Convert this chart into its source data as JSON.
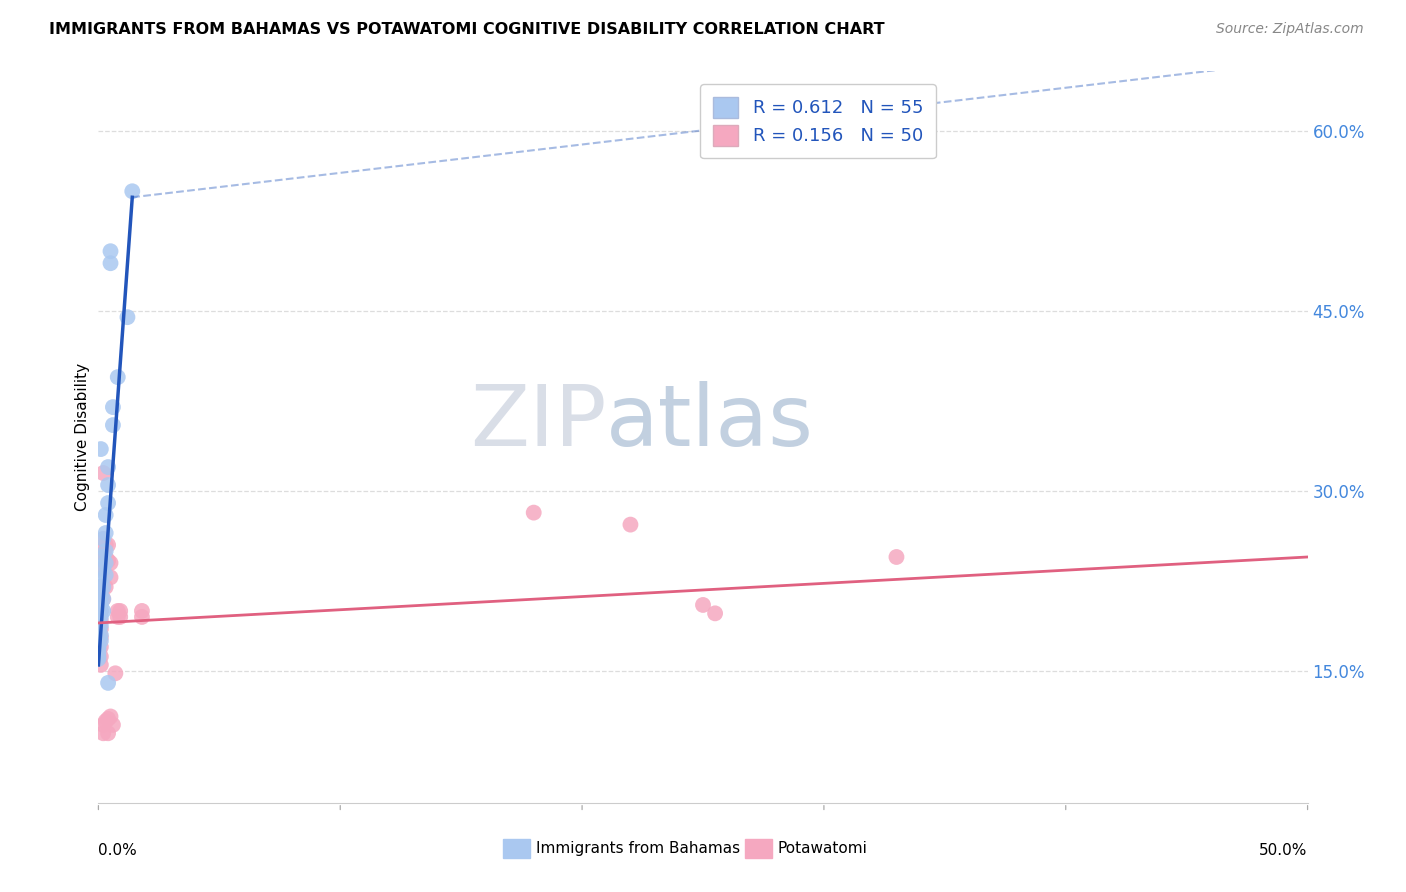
{
  "title": "IMMIGRANTS FROM BAHAMAS VS POTAWATOMI COGNITIVE DISABILITY CORRELATION CHART",
  "source": "Source: ZipAtlas.com",
  "ylabel": "Cognitive Disability",
  "right_yticks": [
    "15.0%",
    "30.0%",
    "45.0%",
    "60.0%"
  ],
  "right_ytick_vals": [
    0.15,
    0.3,
    0.45,
    0.6
  ],
  "xlim": [
    0.0,
    0.5
  ],
  "ylim": [
    0.04,
    0.65
  ],
  "R_blue": 0.612,
  "N_blue": 55,
  "R_pink": 0.156,
  "N_pink": 50,
  "color_blue": "#aac8f0",
  "color_pink": "#f5a8c0",
  "line_blue": "#2255bb",
  "line_pink": "#e06080",
  "legend_label_blue": "Immigrants from Bahamas",
  "legend_label_pink": "Potawatomi",
  "blue_scatter": [
    [
      0.0,
      0.22
    ],
    [
      0.0,
      0.215
    ],
    [
      0.0,
      0.21
    ],
    [
      0.0,
      0.208
    ],
    [
      0.0,
      0.205
    ],
    [
      0.0,
      0.202
    ],
    [
      0.0,
      0.2
    ],
    [
      0.0,
      0.198
    ],
    [
      0.0,
      0.196
    ],
    [
      0.0,
      0.193
    ],
    [
      0.0,
      0.19
    ],
    [
      0.0,
      0.188
    ],
    [
      0.0,
      0.185
    ],
    [
      0.0,
      0.182
    ],
    [
      0.0,
      0.18
    ],
    [
      0.0,
      0.178
    ],
    [
      0.0,
      0.175
    ],
    [
      0.0,
      0.172
    ],
    [
      0.0,
      0.17
    ],
    [
      0.0,
      0.168
    ],
    [
      0.0,
      0.165
    ],
    [
      0.0,
      0.162
    ],
    [
      0.0,
      0.16
    ],
    [
      0.001,
      0.225
    ],
    [
      0.001,
      0.218
    ],
    [
      0.001,
      0.212
    ],
    [
      0.001,
      0.205
    ],
    [
      0.001,
      0.2
    ],
    [
      0.001,
      0.195
    ],
    [
      0.001,
      0.188
    ],
    [
      0.001,
      0.18
    ],
    [
      0.001,
      0.175
    ],
    [
      0.002,
      0.26
    ],
    [
      0.002,
      0.245
    ],
    [
      0.002,
      0.235
    ],
    [
      0.002,
      0.22
    ],
    [
      0.002,
      0.21
    ],
    [
      0.002,
      0.2
    ],
    [
      0.003,
      0.28
    ],
    [
      0.003,
      0.265
    ],
    [
      0.003,
      0.25
    ],
    [
      0.003,
      0.24
    ],
    [
      0.003,
      0.23
    ],
    [
      0.004,
      0.32
    ],
    [
      0.004,
      0.305
    ],
    [
      0.004,
      0.29
    ],
    [
      0.004,
      0.14
    ],
    [
      0.001,
      0.335
    ],
    [
      0.006,
      0.37
    ],
    [
      0.006,
      0.355
    ],
    [
      0.008,
      0.395
    ],
    [
      0.012,
      0.445
    ],
    [
      0.005,
      0.49
    ],
    [
      0.005,
      0.5
    ],
    [
      0.014,
      0.55
    ]
  ],
  "pink_scatter": [
    [
      0.0,
      0.215
    ],
    [
      0.0,
      0.208
    ],
    [
      0.0,
      0.202
    ],
    [
      0.0,
      0.196
    ],
    [
      0.0,
      0.19
    ],
    [
      0.0,
      0.183
    ],
    [
      0.0,
      0.175
    ],
    [
      0.0,
      0.168
    ],
    [
      0.0,
      0.162
    ],
    [
      0.001,
      0.22
    ],
    [
      0.001,
      0.21
    ],
    [
      0.001,
      0.2
    ],
    [
      0.001,
      0.192
    ],
    [
      0.001,
      0.185
    ],
    [
      0.001,
      0.178
    ],
    [
      0.001,
      0.17
    ],
    [
      0.001,
      0.162
    ],
    [
      0.001,
      0.155
    ],
    [
      0.002,
      0.315
    ],
    [
      0.002,
      0.26
    ],
    [
      0.002,
      0.248
    ],
    [
      0.002,
      0.235
    ],
    [
      0.002,
      0.22
    ],
    [
      0.002,
      0.21
    ],
    [
      0.002,
      0.105
    ],
    [
      0.002,
      0.098
    ],
    [
      0.003,
      0.255
    ],
    [
      0.003,
      0.245
    ],
    [
      0.003,
      0.22
    ],
    [
      0.003,
      0.108
    ],
    [
      0.004,
      0.255
    ],
    [
      0.004,
      0.242
    ],
    [
      0.004,
      0.11
    ],
    [
      0.004,
      0.098
    ],
    [
      0.005,
      0.24
    ],
    [
      0.005,
      0.228
    ],
    [
      0.005,
      0.112
    ],
    [
      0.006,
      0.105
    ],
    [
      0.007,
      0.148
    ],
    [
      0.008,
      0.2
    ],
    [
      0.008,
      0.195
    ],
    [
      0.009,
      0.2
    ],
    [
      0.009,
      0.195
    ],
    [
      0.018,
      0.2
    ],
    [
      0.018,
      0.195
    ],
    [
      0.18,
      0.282
    ],
    [
      0.22,
      0.272
    ],
    [
      0.25,
      0.205
    ],
    [
      0.255,
      0.198
    ],
    [
      0.33,
      0.245
    ]
  ],
  "blue_line_solid": [
    [
      0.0,
      0.155
    ],
    [
      0.014,
      0.545
    ]
  ],
  "blue_line_dashed": [
    [
      0.014,
      0.545
    ],
    [
      0.5,
      0.66
    ]
  ],
  "pink_line": [
    [
      0.0,
      0.19
    ],
    [
      0.5,
      0.245
    ]
  ],
  "watermark_zip": "ZIP",
  "watermark_atlas": "atlas",
  "background": "#ffffff",
  "grid_color": "#dddddd",
  "grid_style": "--"
}
